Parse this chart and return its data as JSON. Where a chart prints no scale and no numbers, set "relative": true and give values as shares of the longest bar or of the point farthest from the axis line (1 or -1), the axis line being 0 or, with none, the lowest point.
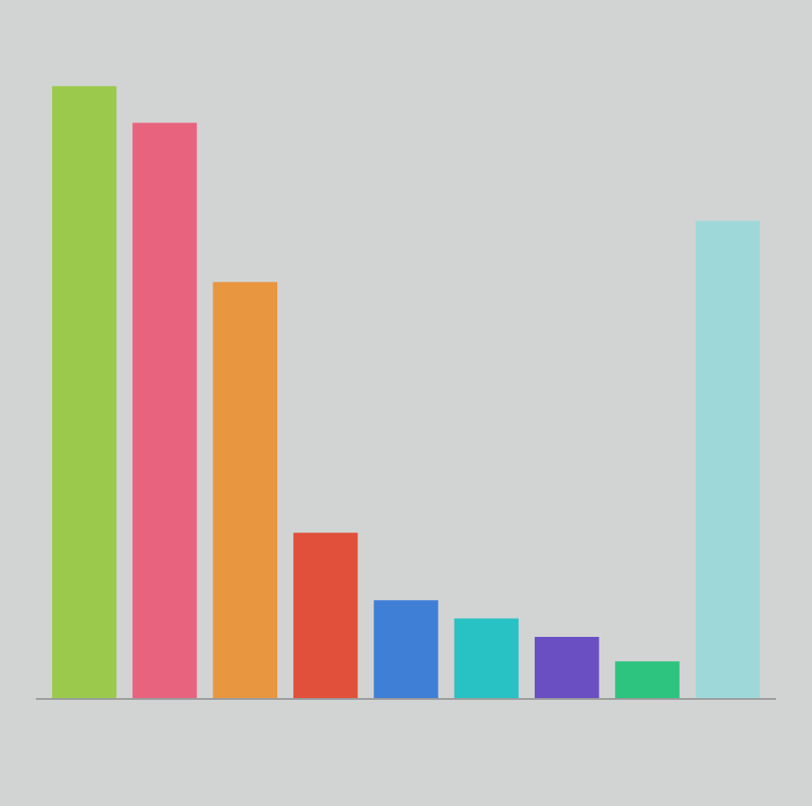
{
  "chart_data": {
    "type": "bar",
    "relative": true,
    "categories": [
      null,
      null,
      null,
      null,
      null,
      null,
      null,
      null,
      null
    ],
    "values": [
      1,
      0.94,
      0.68,
      0.27,
      0.16,
      0.13,
      0.1,
      0.06,
      0.78
    ],
    "colors": [
      "#9bc94c",
      "#e8647e",
      "#e8963f",
      "#e0503a",
      "#3f7fd6",
      "#28c2c4",
      "#6a4fc2",
      "#2cc47e",
      "#9fd8d8"
    ],
    "legend": false
  }
}
